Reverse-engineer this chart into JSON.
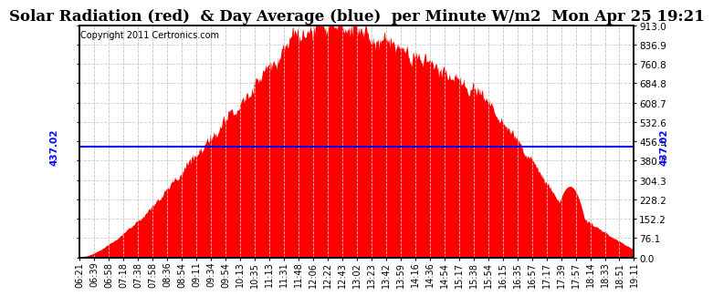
{
  "title": "Solar Radiation (red)  & Day Average (blue)  per Minute W/m2  Mon Apr 25 19:21",
  "copyright_text": "Copyright 2011 Certronics.com",
  "day_average": 437.02,
  "y_max": 913.0,
  "y_min": 0.0,
  "y_ticks": [
    0.0,
    76.1,
    152.2,
    228.2,
    304.3,
    380.4,
    456.5,
    532.6,
    608.7,
    684.8,
    760.8,
    836.9,
    913.0
  ],
  "x_labels": [
    "06:21",
    "06:39",
    "06:58",
    "07:18",
    "07:38",
    "07:58",
    "08:36",
    "08:54",
    "09:11",
    "09:34",
    "09:54",
    "10:13",
    "10:35",
    "11:13",
    "11:31",
    "11:48",
    "12:06",
    "12:22",
    "12:43",
    "13:02",
    "13:23",
    "13:42",
    "13:59",
    "14:16",
    "14:36",
    "14:54",
    "15:17",
    "15:38",
    "15:54",
    "16:15",
    "16:35",
    "16:57",
    "17:17",
    "17:39",
    "17:57",
    "18:14",
    "18:33",
    "18:51",
    "19:11"
  ],
  "bar_color": "#FF0000",
  "line_color": "#0000FF",
  "bg_color": "#FFFFFF",
  "grid_color": "#CCCCCC",
  "title_fontsize": 12,
  "copyright_fontsize": 7,
  "tick_fontsize": 7.5,
  "label_fontsize": 7.5
}
